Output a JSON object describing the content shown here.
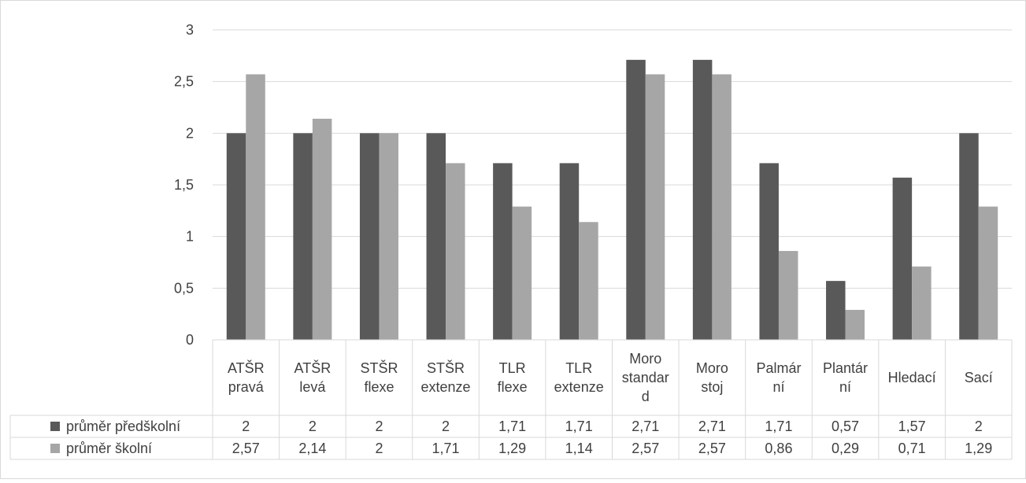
{
  "chart_data": {
    "type": "bar",
    "categories": [
      [
        "ATŠR",
        "pravá"
      ],
      [
        "ATŠR",
        "levá"
      ],
      [
        "STŠR",
        "flexe"
      ],
      [
        "STŠR",
        "extenze"
      ],
      [
        "TLR",
        "flexe"
      ],
      [
        "TLR",
        "extenze"
      ],
      [
        "Moro",
        "standar",
        "d"
      ],
      [
        "Moro",
        "stoj"
      ],
      [
        "Palmár",
        "ní"
      ],
      [
        "Plantár",
        "ní"
      ],
      [
        "Hledací"
      ],
      [
        "Sací"
      ]
    ],
    "series": [
      {
        "name": "průměr předškolní",
        "color": "#595959",
        "values": [
          2,
          2,
          2,
          2,
          1.71,
          1.71,
          2.71,
          2.71,
          1.71,
          0.57,
          1.57,
          2
        ],
        "labels": [
          "2",
          "2",
          "2",
          "2",
          "1,71",
          "1,71",
          "2,71",
          "2,71",
          "1,71",
          "0,57",
          "1,57",
          "2"
        ]
      },
      {
        "name": "průměr školní",
        "color": "#a6a6a6",
        "values": [
          2.57,
          2.14,
          2,
          1.71,
          1.29,
          1.14,
          2.57,
          2.57,
          0.86,
          0.29,
          0.71,
          1.29
        ],
        "labels": [
          "2,57",
          "2,14",
          "2",
          "1,71",
          "1,29",
          "1,14",
          "2,57",
          "2,57",
          "0,86",
          "0,29",
          "0,71",
          "1,29"
        ]
      }
    ],
    "ylim": [
      0,
      3
    ],
    "yticks": [
      "0",
      "0,5",
      "1",
      "1,5",
      "2",
      "2,5",
      "3"
    ],
    "grid": true,
    "legend": "data-table"
  }
}
